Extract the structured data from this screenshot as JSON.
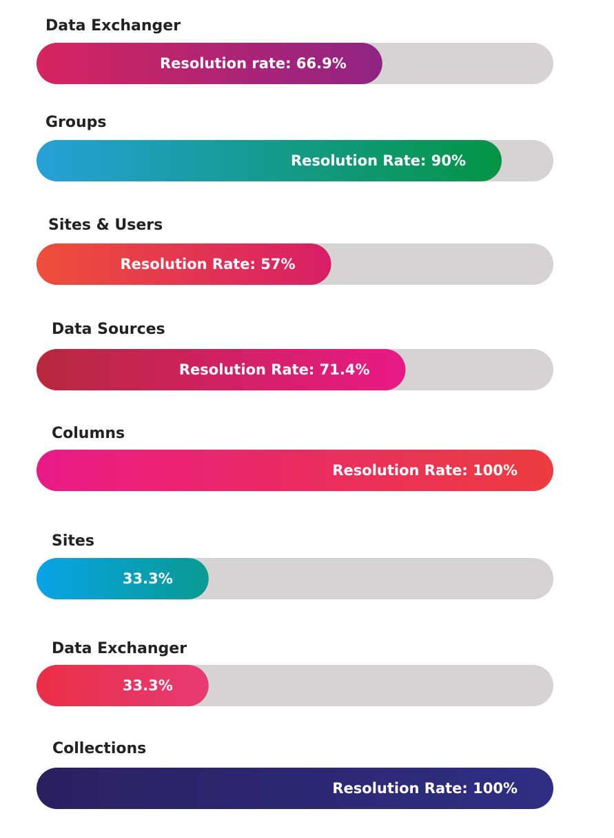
{
  "chart_data": {
    "type": "bar",
    "orientation": "horizontal",
    "xlim": [
      0,
      100
    ],
    "track_color": "#d5d3d4",
    "categories": [
      "Data Exchanger",
      "Groups",
      "Sites & Users",
      "Data Sources",
      "Columns",
      "Sites",
      "Data Exchanger",
      "Collections"
    ],
    "values": [
      66.9,
      90,
      57,
      71.4,
      100,
      33.3,
      33.3,
      100
    ],
    "data_labels": [
      "Resolution rate: 66.9%",
      "Resolution Rate: 90%",
      "Resolution Rate: 57%",
      "Resolution Rate: 71.4%",
      "Resolution Rate: 100%",
      "33.3%",
      "33.3%",
      "Resolution Rate: 100%"
    ],
    "gradients": [
      [
        "#d6245f",
        "#8f2484"
      ],
      [
        "#27a0d8",
        "#059444"
      ],
      [
        "#ee4f3a",
        "#d91e66"
      ],
      [
        "#b8283e",
        "#e91a86"
      ],
      [
        "#e91a86",
        "#ec3d3f"
      ],
      [
        "#09a3e6",
        "#089b92"
      ],
      [
        "#ea2f46",
        "#e83a74"
      ],
      [
        "#2b2060",
        "#2f2e84"
      ]
    ]
  }
}
